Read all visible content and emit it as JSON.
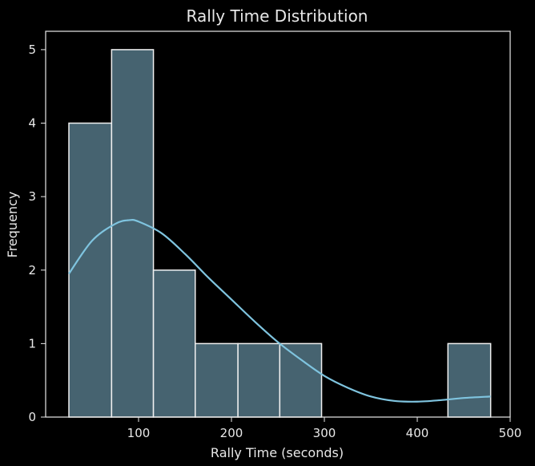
{
  "chart_data": {
    "type": "bar",
    "title": "Rally Time Distribution",
    "xlabel": "Rally Time (seconds)",
    "ylabel": "Frequency",
    "xlim": [
      0,
      500
    ],
    "ylim": [
      0,
      5.25
    ],
    "xticks": [
      100,
      200,
      300,
      400,
      500
    ],
    "yticks": [
      0,
      1,
      2,
      3,
      4,
      5
    ],
    "bins": [
      {
        "start": 25,
        "end": 71,
        "count": 4
      },
      {
        "start": 71,
        "end": 116,
        "count": 5
      },
      {
        "start": 116,
        "end": 161,
        "count": 2
      },
      {
        "start": 161,
        "end": 207,
        "count": 1
      },
      {
        "start": 207,
        "end": 252,
        "count": 1
      },
      {
        "start": 252,
        "end": 297,
        "count": 1
      },
      {
        "start": 297,
        "end": 343,
        "count": 0
      },
      {
        "start": 343,
        "end": 388,
        "count": 0
      },
      {
        "start": 388,
        "end": 433,
        "count": 0
      },
      {
        "start": 433,
        "end": 479,
        "count": 1
      }
    ],
    "kde": {
      "x": [
        25,
        50,
        75,
        90,
        100,
        125,
        150,
        175,
        200,
        225,
        250,
        275,
        300,
        325,
        350,
        375,
        400,
        425,
        450,
        479
      ],
      "y": [
        1.95,
        2.4,
        2.63,
        2.68,
        2.66,
        2.5,
        2.22,
        1.9,
        1.6,
        1.3,
        1.02,
        0.78,
        0.56,
        0.4,
        0.28,
        0.22,
        0.21,
        0.23,
        0.26,
        0.28
      ]
    },
    "grid": false,
    "colors": {
      "background": "#000000",
      "bar_fill": "#466370",
      "bar_edge": "#f0f0f0",
      "kde_line": "#7fc4df",
      "axes": "#e8e8e8",
      "text": "#e8e8e8"
    }
  }
}
